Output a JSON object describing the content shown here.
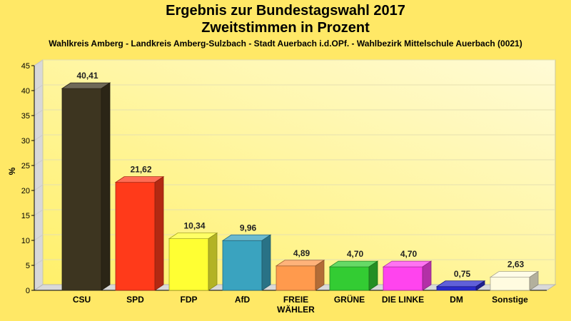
{
  "chart_data": {
    "type": "bar",
    "title": "Ergebnis zur Bundestagswahl 2017",
    "title_line2": "Zweitstimmen in Prozent",
    "subtitle": "Wahlkreis Amberg - Landkreis Amberg-Sulzbach - Stadt Auerbach i.d.OPf. - Wahlbezirk Mittelschule Auerbach (0021)",
    "ylabel": "%",
    "ylim": [
      0,
      45
    ],
    "yticks": [
      0,
      5,
      10,
      15,
      20,
      25,
      30,
      35,
      40,
      45
    ],
    "grid": true,
    "categories": [
      [
        "CSU"
      ],
      [
        "SPD"
      ],
      [
        "FDP"
      ],
      [
        "AfD"
      ],
      [
        "FREIE",
        "WÄHLER"
      ],
      [
        "GRÜNE"
      ],
      [
        "DIE LINKE"
      ],
      [
        "DM"
      ],
      [
        "Sonstige"
      ]
    ],
    "values": [
      40.41,
      21.62,
      10.34,
      9.96,
      4.89,
      4.7,
      4.7,
      0.75,
      2.63
    ],
    "value_labels": [
      "40,41",
      "21,62",
      "10,34",
      "9,96",
      "4,89",
      "4,70",
      "4,70",
      "0,75",
      "2,63"
    ],
    "colors": [
      "#3d3520",
      "#ff3a1a",
      "#ffff33",
      "#3aa3bf",
      "#ff9a4d",
      "#33cc33",
      "#ff44ee",
      "#2b2bcc",
      "#fffbe0"
    ]
  }
}
